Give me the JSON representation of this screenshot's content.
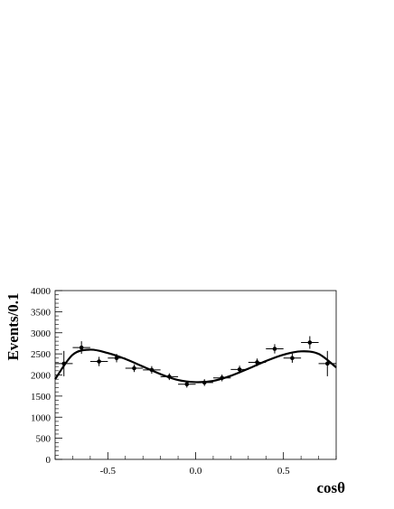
{
  "chart_data": {
    "type": "scatter",
    "title": "",
    "xlabel": "cosθ",
    "ylabel": "Events/0.1",
    "xlim": [
      -0.8,
      0.8
    ],
    "ylim": [
      0,
      4000
    ],
    "x_ticks": [
      -0.5,
      0.0,
      0.5
    ],
    "x_tick_labels": [
      "-0.5",
      "0.0",
      "0.5"
    ],
    "y_ticks": [
      0,
      500,
      1000,
      1500,
      2000,
      2500,
      3000,
      3500,
      4000
    ],
    "y_tick_labels": [
      "0",
      "500",
      "1000",
      "1500",
      "2000",
      "2500",
      "3000",
      "3500",
      "4000"
    ],
    "grid": false,
    "legend": "none",
    "series": [
      {
        "type": "errorbar",
        "x": [
          -0.75,
          -0.65,
          -0.55,
          -0.45,
          -0.35,
          -0.25,
          -0.15,
          -0.05,
          0.05,
          0.15,
          0.25,
          0.35,
          0.45,
          0.55,
          0.65,
          0.75
        ],
        "x_err": 0.05,
        "y": [
          2270,
          2650,
          2320,
          2400,
          2160,
          2120,
          1960,
          1780,
          1820,
          1930,
          2130,
          2300,
          2620,
          2400,
          2770,
          2270
        ],
        "y_err": [
          300,
          150,
          110,
          100,
          90,
          90,
          80,
          80,
          80,
          80,
          90,
          90,
          110,
          110,
          150,
          300
        ]
      },
      {
        "type": "line",
        "x": [
          -0.8,
          -0.7,
          -0.6,
          -0.5,
          -0.4,
          -0.3,
          -0.2,
          -0.1,
          0.0,
          0.1,
          0.2,
          0.3,
          0.4,
          0.5,
          0.6,
          0.7,
          0.8
        ],
        "y": [
          1900,
          2480,
          2600,
          2520,
          2380,
          2200,
          2020,
          1880,
          1830,
          1860,
          1980,
          2150,
          2330,
          2480,
          2560,
          2500,
          2180
        ]
      }
    ]
  }
}
